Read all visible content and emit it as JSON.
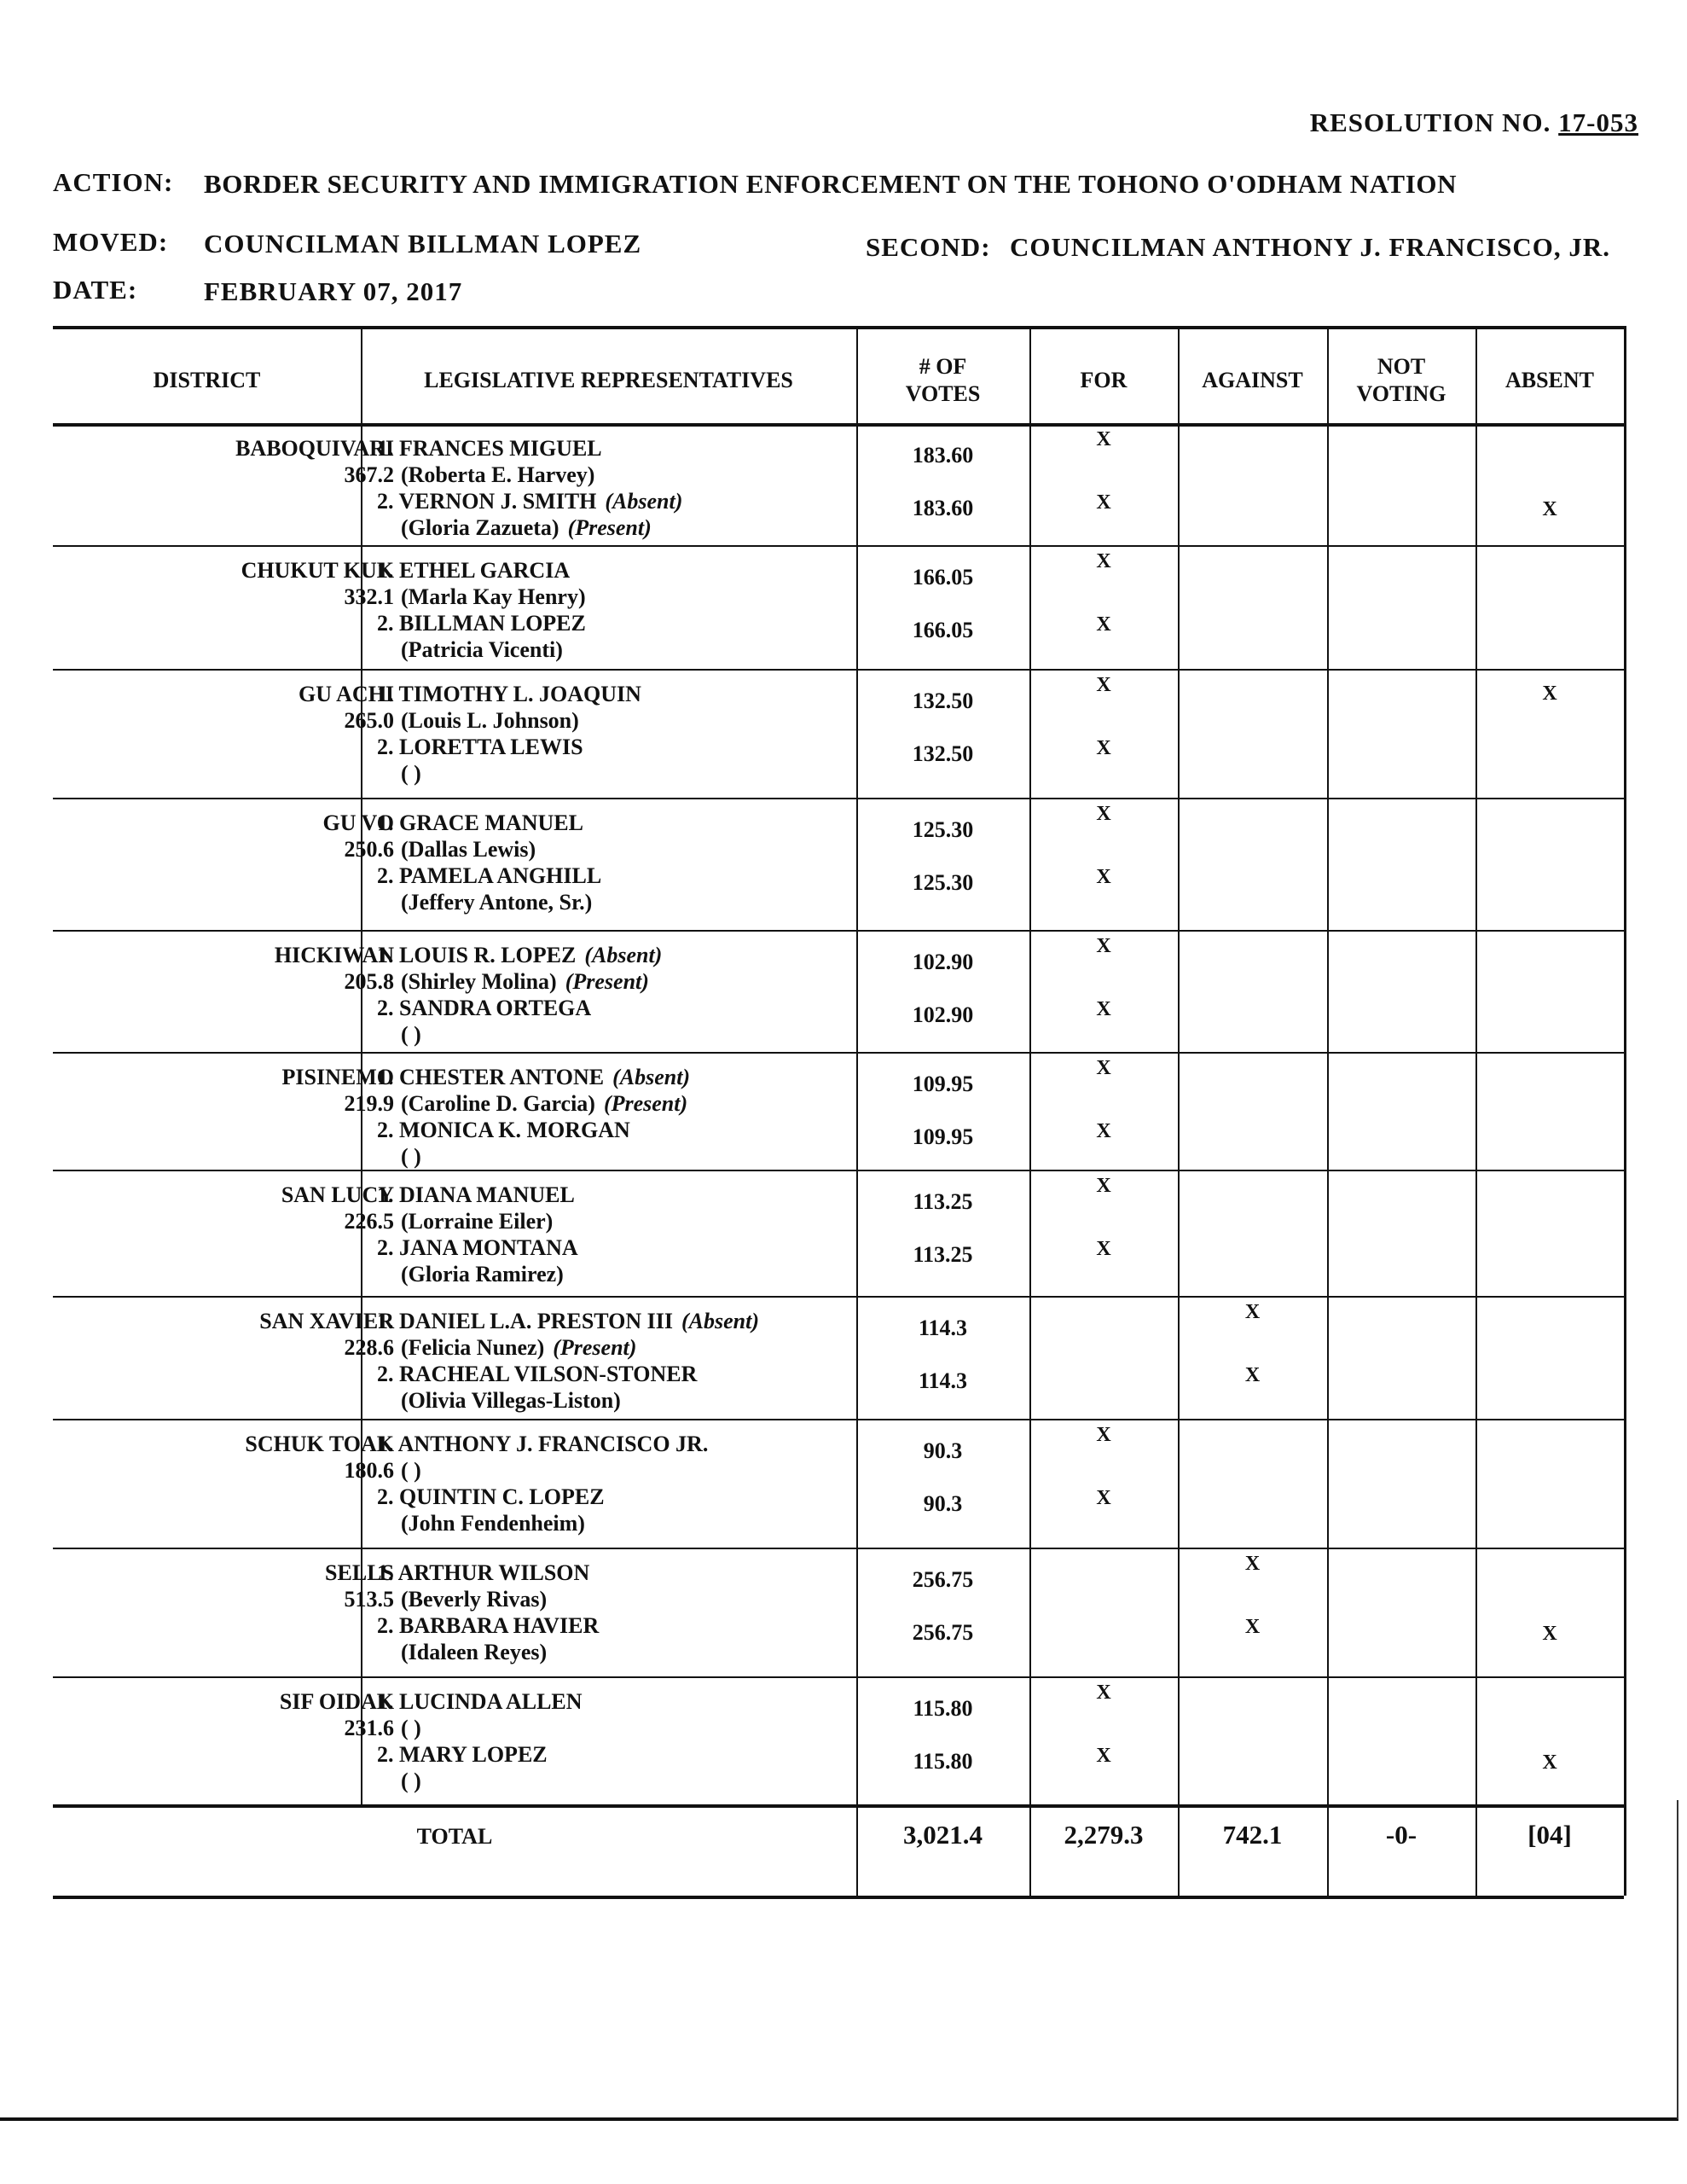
{
  "resolution": {
    "label": "RESOLUTION NO.",
    "number": "17-053"
  },
  "action": {
    "label": "ACTION:",
    "value": "BORDER SECURITY AND IMMIGRATION ENFORCEMENT ON THE TOHONO O'ODHAM NATION"
  },
  "moved": {
    "label": "MOVED:",
    "value": "COUNCILMAN BILLMAN LOPEZ"
  },
  "second": {
    "label": "SECOND:",
    "value": "COUNCILMAN ANTHONY J. FRANCISCO, JR."
  },
  "date": {
    "label": "DATE:",
    "value": "FEBRUARY 07, 2017"
  },
  "table": {
    "headers": [
      "DISTRICT",
      "LEGISLATIVE REPRESENTATIVES",
      "# OF\nVOTES",
      "FOR",
      "AGAINST",
      "NOT\nVOTING",
      "ABSENT"
    ],
    "mark": "X",
    "rows": [
      {
        "district": "BABOQUIVARI",
        "total": "367.2",
        "lines": [
          {
            "text": "1. FRANCES MIGUEL"
          },
          {
            "text": "(Roberta E. Harvey)",
            "indent": true
          },
          {
            "text": "2. VERNON J. SMITH",
            "note": "(Absent)"
          },
          {
            "text": "(Gloria Zazueta)",
            "note": "(Present)",
            "indent": true
          }
        ],
        "votes": [
          "183.60",
          "183.60"
        ],
        "for": [
          true,
          true
        ],
        "against": [
          false,
          false
        ],
        "absent": [
          false,
          true
        ]
      },
      {
        "district": "CHUKUT KUK",
        "total": "332.1",
        "lines": [
          {
            "text": "1. ETHEL GARCIA"
          },
          {
            "text": "(Marla Kay Henry)",
            "indent": true
          },
          {
            "text": "2. BILLMAN LOPEZ"
          },
          {
            "text": "(Patricia Vicenti)",
            "indent": true
          }
        ],
        "votes": [
          "166.05",
          "166.05"
        ],
        "for": [
          true,
          true
        ],
        "against": [
          false,
          false
        ],
        "absent": [
          false,
          false
        ]
      },
      {
        "district": "GU ACHI",
        "total": "265.0",
        "lines": [
          {
            "text": "1. TIMOTHY L. JOAQUIN"
          },
          {
            "text": "(Louis L. Johnson)",
            "indent": true
          },
          {
            "text": "2. LORETTA LEWIS"
          },
          {
            "text": "(        )",
            "indent": true
          }
        ],
        "votes": [
          "132.50",
          "132.50"
        ],
        "for": [
          true,
          true
        ],
        "against": [
          false,
          false
        ],
        "absent": [
          true,
          false
        ]
      },
      {
        "district": "GU VO",
        "total": "250.6",
        "lines": [
          {
            "text": "1. GRACE MANUEL"
          },
          {
            "text": "(Dallas Lewis)",
            "indent": true
          },
          {
            "text": "2. PAMELA ANGHILL"
          },
          {
            "text": "(Jeffery Antone, Sr.)",
            "indent": true
          }
        ],
        "votes": [
          "125.30",
          "125.30"
        ],
        "for": [
          true,
          true
        ],
        "against": [
          false,
          false
        ],
        "absent": [
          false,
          false
        ]
      },
      {
        "district": "HICKIWAN",
        "total": "205.8",
        "lines": [
          {
            "text": "1. LOUIS R. LOPEZ",
            "note": "(Absent)"
          },
          {
            "text": "(Shirley Molina)",
            "note": "(Present)",
            "indent": true
          },
          {
            "text": "2. SANDRA ORTEGA"
          },
          {
            "text": "(          )",
            "indent": true
          }
        ],
        "votes": [
          "102.90",
          "102.90"
        ],
        "for": [
          true,
          true
        ],
        "against": [
          false,
          false
        ],
        "absent": [
          false,
          false
        ]
      },
      {
        "district": "PISINEMO",
        "total": "219.9",
        "lines": [
          {
            "text": "1. CHESTER ANTONE",
            "note": "(Absent)"
          },
          {
            "text": "(Caroline D. Garcia)",
            "note": "(Present)",
            "indent": true
          },
          {
            "text": "2. MONICA K. MORGAN"
          },
          {
            "text": "(          )",
            "indent": true
          }
        ],
        "votes": [
          "109.95",
          "109.95"
        ],
        "for": [
          true,
          true
        ],
        "against": [
          false,
          false
        ],
        "absent": [
          false,
          false
        ]
      },
      {
        "district": "SAN LUCY",
        "total": "226.5",
        "lines": [
          {
            "text": "1. DIANA MANUEL"
          },
          {
            "text": "(Lorraine Eiler)",
            "indent": true
          },
          {
            "text": "2. JANA MONTANA"
          },
          {
            "text": "(Gloria Ramirez)",
            "indent": true
          }
        ],
        "votes": [
          "113.25",
          "113.25"
        ],
        "for": [
          true,
          true
        ],
        "against": [
          false,
          false
        ],
        "absent": [
          false,
          false
        ]
      },
      {
        "district": "SAN XAVIER",
        "total": "228.6",
        "lines": [
          {
            "text": "1. DANIEL L.A. PRESTON III",
            "note": "(Absent)"
          },
          {
            "text": "(Felicia Nunez)",
            "note": "(Present)",
            "indent": true
          },
          {
            "text": "2. RACHEAL VILSON-STONER"
          },
          {
            "text": "(Olivia Villegas-Liston)",
            "indent": true
          }
        ],
        "votes": [
          "114.3",
          "114.3"
        ],
        "for": [
          false,
          false
        ],
        "against": [
          true,
          true
        ],
        "absent": [
          false,
          false
        ]
      },
      {
        "district": "SCHUK TOAK",
        "total": "180.6",
        "lines": [
          {
            "text": "1. ANTHONY J. FRANCISCO JR."
          },
          {
            "text": "(          )",
            "indent": true
          },
          {
            "text": "2. QUINTIN C. LOPEZ"
          },
          {
            "text": "(John Fendenheim)",
            "indent": true
          }
        ],
        "votes": [
          "90.3",
          "90.3"
        ],
        "for": [
          true,
          true
        ],
        "against": [
          false,
          false
        ],
        "absent": [
          false,
          false
        ]
      },
      {
        "district": "SELLS",
        "total": "513.5",
        "lines": [
          {
            "text": "1. ARTHUR WILSON"
          },
          {
            "text": "(Beverly Rivas)",
            "indent": true
          },
          {
            "text": "2. BARBARA HAVIER"
          },
          {
            "text": "(Idaleen Reyes)",
            "indent": true
          }
        ],
        "votes": [
          "256.75",
          "256.75"
        ],
        "for": [
          false,
          false
        ],
        "against": [
          true,
          true
        ],
        "absent": [
          false,
          true
        ]
      },
      {
        "district": "SIF OIDAK",
        "total": "231.6",
        "lines": [
          {
            "text": "1. LUCINDA ALLEN"
          },
          {
            "text": "(          )",
            "indent": true
          },
          {
            "text": "2. MARY LOPEZ"
          },
          {
            "text": "(          )",
            "indent": true
          }
        ],
        "votes": [
          "115.80",
          "115.80"
        ],
        "for": [
          true,
          true
        ],
        "against": [
          false,
          false
        ],
        "absent": [
          false,
          true
        ]
      }
    ],
    "total": {
      "label": "TOTAL",
      "votes": "3,021.4",
      "for": "2,279.3",
      "against": "742.1",
      "not_voting": "-0-",
      "absent": "[04]"
    }
  }
}
